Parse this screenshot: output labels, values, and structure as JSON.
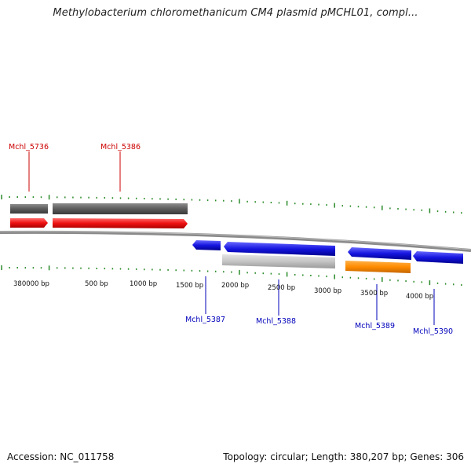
{
  "title": "Methylobacterium chloromethanicum CM4 plasmid pMCHL01, compl...",
  "footer": {
    "accession": "Accession: NC_011758",
    "summary": "Topology: circular; Length: 380,207 bp; Genes: 306"
  },
  "colors": {
    "forward_gene": "#ee1111",
    "reverse_gene": "#1111dd",
    "forward_label": "#cc0000",
    "reverse_label": "#0000bb",
    "gray_feature": "#5c5c5c",
    "light_gray_feature": "#c4c4c4",
    "orange_feature": "#ff8c00",
    "backbone": "#8a8a8a",
    "tick": "#2a8a2a"
  },
  "tick_labels": [
    "380000 bp",
    "500 bp",
    "1000 bp",
    "1500 bp",
    "2000 bp",
    "2500 bp",
    "3000 bp",
    "3500 bp",
    "4000 bp"
  ],
  "forward_genes": [
    {
      "id": "Mchl_5736",
      "strand": "+"
    },
    {
      "id": "Mchl_5386",
      "strand": "+"
    }
  ],
  "reverse_genes": [
    {
      "id": "Mchl_5387",
      "strand": "-"
    },
    {
      "id": "Mchl_5388",
      "strand": "-"
    },
    {
      "id": "Mchl_5389",
      "strand": "-"
    },
    {
      "id": "Mchl_5390",
      "strand": "-"
    }
  ]
}
